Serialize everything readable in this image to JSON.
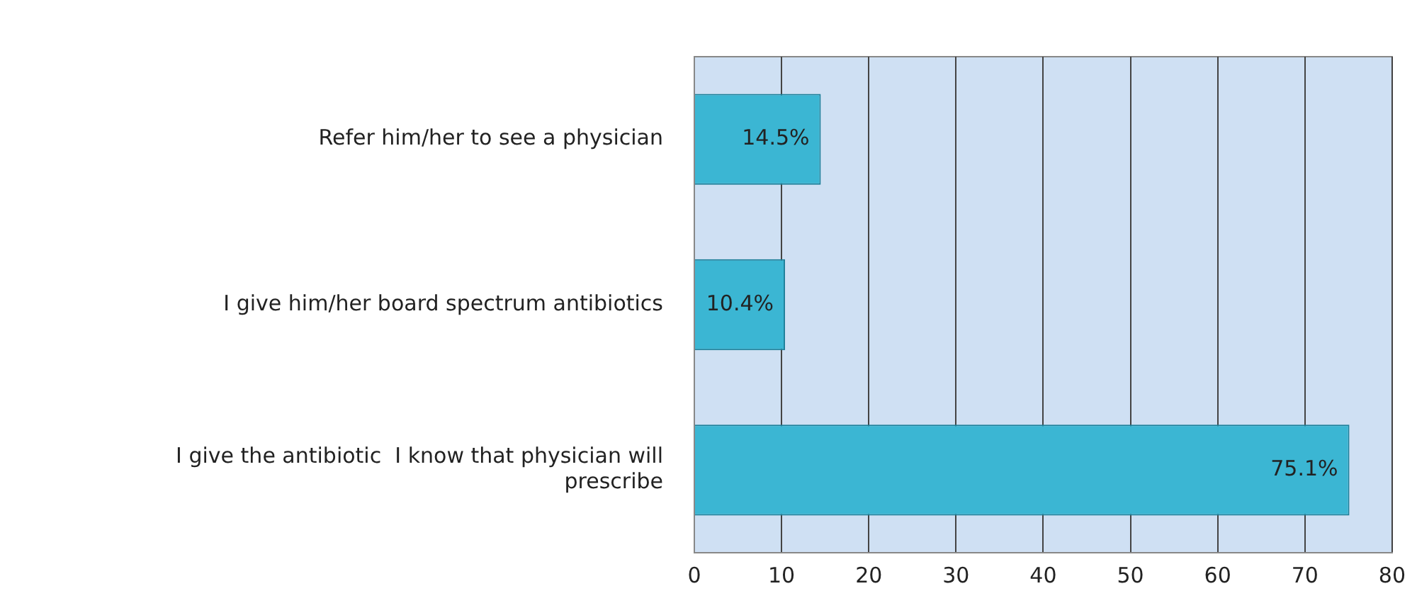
{
  "chart_data": {
    "type": "bar",
    "orientation": "horizontal",
    "categories": [
      "Refer him/her to see a physician",
      "I give him/her board spectrum antibiotics",
      "I give the antibiotic  I know that physician will prescribe"
    ],
    "values": [
      14.5,
      10.4,
      75.1
    ],
    "value_labels": [
      "14.5%",
      "10.4%",
      "75.1%"
    ],
    "color": "#3bb6d3",
    "xlim": [
      0,
      80
    ],
    "xticks": [
      0,
      10,
      20,
      30,
      40,
      50,
      60,
      70,
      80
    ],
    "grid": "x"
  }
}
